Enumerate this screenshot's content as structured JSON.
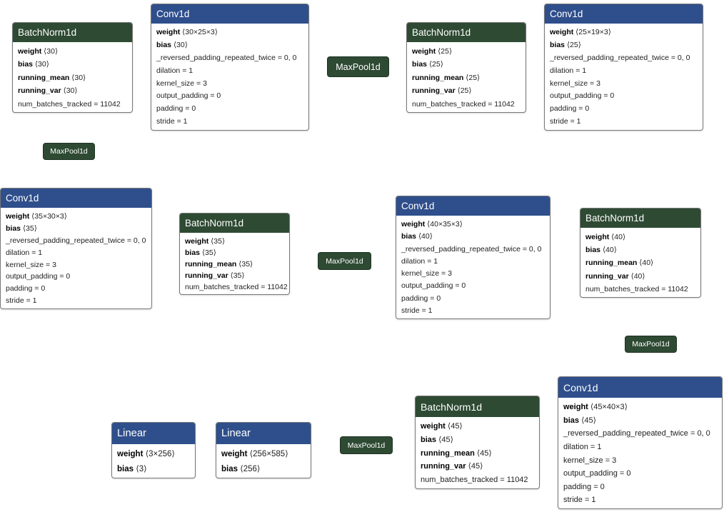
{
  "nodes": [
    {
      "title": "BatchNorm1d",
      "tensors": [
        {
          "name": "weight",
          "value": "⟨30⟩"
        },
        {
          "name": "bias",
          "value": "⟨30⟩"
        },
        {
          "name": "running_mean",
          "value": "⟨30⟩"
        },
        {
          "name": "running_var",
          "value": "⟨30⟩"
        }
      ],
      "attributes": [
        "num_batches_tracked = 11042"
      ]
    },
    {
      "title": "Conv1d",
      "tensors": [
        {
          "name": "weight",
          "value": "⟨30×25×3⟩"
        },
        {
          "name": "bias",
          "value": "⟨30⟩"
        }
      ],
      "attributes": [
        "_reversed_padding_repeated_twice = 0, 0",
        "dilation = 1",
        "kernel_size = 3",
        "output_padding = 0",
        "padding = 0",
        "stride = 1"
      ]
    },
    {
      "title": "MaxPool1d"
    },
    {
      "title": "BatchNorm1d",
      "tensors": [
        {
          "name": "weight",
          "value": "⟨25⟩"
        },
        {
          "name": "bias",
          "value": "⟨25⟩"
        },
        {
          "name": "running_mean",
          "value": "⟨25⟩"
        },
        {
          "name": "running_var",
          "value": "⟨25⟩"
        }
      ],
      "attributes": [
        "num_batches_tracked = 11042"
      ]
    },
    {
      "title": "Conv1d",
      "tensors": [
        {
          "name": "weight",
          "value": "⟨25×19×3⟩"
        },
        {
          "name": "bias",
          "value": "⟨25⟩"
        }
      ],
      "attributes": [
        "_reversed_padding_repeated_twice = 0, 0",
        "dilation = 1",
        "kernel_size = 3",
        "output_padding = 0",
        "padding = 0",
        "stride = 1"
      ]
    },
    {
      "title": "MaxPool1d"
    },
    {
      "title": "Conv1d",
      "tensors": [
        {
          "name": "weight",
          "value": "⟨35×30×3⟩"
        },
        {
          "name": "bias",
          "value": "⟨35⟩"
        }
      ],
      "attributes": [
        "_reversed_padding_repeated_twice = 0, 0",
        "dilation = 1",
        "kernel_size = 3",
        "output_padding = 0",
        "padding = 0",
        "stride = 1"
      ]
    },
    {
      "title": "BatchNorm1d",
      "tensors": [
        {
          "name": "weight",
          "value": "⟨35⟩"
        },
        {
          "name": "bias",
          "value": "⟨35⟩"
        },
        {
          "name": "running_mean",
          "value": "⟨35⟩"
        },
        {
          "name": "running_var",
          "value": "⟨35⟩"
        }
      ],
      "attributes": [
        "num_batches_tracked = 11042"
      ]
    },
    {
      "title": "MaxPool1d"
    },
    {
      "title": "Conv1d",
      "tensors": [
        {
          "name": "weight",
          "value": "⟨40×35×3⟩"
        },
        {
          "name": "bias",
          "value": "⟨40⟩"
        }
      ],
      "attributes": [
        "_reversed_padding_repeated_twice = 0, 0",
        "dilation = 1",
        "kernel_size = 3",
        "output_padding = 0",
        "padding = 0",
        "stride = 1"
      ]
    },
    {
      "title": "BatchNorm1d",
      "tensors": [
        {
          "name": "weight",
          "value": "⟨40⟩"
        },
        {
          "name": "bias",
          "value": "⟨40⟩"
        },
        {
          "name": "running_mean",
          "value": "⟨40⟩"
        },
        {
          "name": "running_var",
          "value": "⟨40⟩"
        }
      ],
      "attributes": [
        "num_batches_tracked = 11042"
      ]
    },
    {
      "title": "MaxPool1d"
    },
    {
      "title": "Conv1d",
      "tensors": [
        {
          "name": "weight",
          "value": "⟨45×40×3⟩"
        },
        {
          "name": "bias",
          "value": "⟨45⟩"
        }
      ],
      "attributes": [
        "_reversed_padding_repeated_twice = 0, 0",
        "dilation = 1",
        "kernel_size = 3",
        "output_padding = 0",
        "padding = 0",
        "stride = 1"
      ]
    },
    {
      "title": "BatchNorm1d",
      "tensors": [
        {
          "name": "weight",
          "value": "⟨45⟩"
        },
        {
          "name": "bias",
          "value": "⟨45⟩"
        },
        {
          "name": "running_mean",
          "value": "⟨45⟩"
        },
        {
          "name": "running_var",
          "value": "⟨45⟩"
        }
      ],
      "attributes": [
        "num_batches_tracked = 11042"
      ]
    },
    {
      "title": "MaxPool1d"
    },
    {
      "title": "Linear",
      "tensors": [
        {
          "name": "weight",
          "value": "⟨256×585⟩"
        },
        {
          "name": "bias",
          "value": "⟨256⟩"
        }
      ]
    },
    {
      "title": "Linear",
      "tensors": [
        {
          "name": "weight",
          "value": "⟨3×256⟩"
        },
        {
          "name": "bias",
          "value": "⟨3⟩"
        }
      ]
    }
  ]
}
